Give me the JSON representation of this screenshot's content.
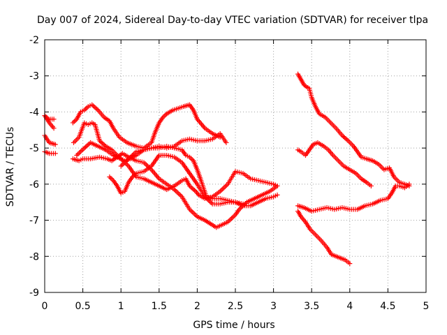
{
  "chart_data": {
    "type": "scatter",
    "title": "Day 007 of 2024, Sidereal Day-to-day VTEC variation (SDTVAR) for receiver tlpa",
    "xlabel": "GPS time / hours",
    "ylabel": "SDTVAR / TECUs",
    "xlim": [
      0,
      5
    ],
    "ylim": [
      -9,
      -2
    ],
    "xticks": [
      0,
      0.5,
      1,
      1.5,
      2,
      2.5,
      3,
      3.5,
      4,
      4.5,
      5
    ],
    "xtick_labels": [
      "0",
      "0.5",
      "1",
      "1.5",
      "2",
      "2.5",
      "3",
      "3.5",
      "4",
      "4.5",
      "5"
    ],
    "yticks": [
      -9,
      -8,
      -7,
      -6,
      -5,
      -4,
      -3,
      -2
    ],
    "ytick_labels": [
      "-9",
      "-8",
      "-7",
      "-6",
      "-5",
      "-4",
      "-3",
      "-2"
    ],
    "grid": true,
    "marker": "+",
    "color": "#ff0000",
    "series": [
      {
        "name": "s1",
        "x": [
          0.0,
          0.05,
          0.12
        ],
        "y": [
          -4.1,
          -4.2,
          -4.2
        ]
      },
      {
        "name": "s2",
        "x": [
          0.0,
          0.06,
          0.12
        ],
        "y": [
          -4.1,
          -4.3,
          -4.45
        ]
      },
      {
        "name": "s3",
        "x": [
          0.0,
          0.06,
          0.14
        ],
        "y": [
          -4.65,
          -4.85,
          -4.9
        ]
      },
      {
        "name": "s4",
        "x": [
          0.0,
          0.06,
          0.14
        ],
        "y": [
          -5.1,
          -5.15,
          -5.15
        ]
      },
      {
        "name": "s5",
        "x": [
          0.38,
          0.45,
          0.52,
          0.57,
          0.62,
          0.66,
          0.72,
          0.8,
          0.88,
          0.95,
          1.0,
          1.05,
          1.12,
          1.2,
          1.3,
          1.4,
          1.5,
          1.6,
          1.7,
          1.8,
          1.9,
          2.0,
          2.1,
          2.2,
          2.3,
          2.38
        ],
        "y": [
          -4.85,
          -4.7,
          -4.3,
          -4.35,
          -4.3,
          -4.35,
          -4.8,
          -4.95,
          -5.05,
          -5.2,
          -5.3,
          -5.35,
          -5.3,
          -5.2,
          -5.05,
          -5.0,
          -4.95,
          -5.0,
          -4.95,
          -4.8,
          -4.75,
          -4.8,
          -4.8,
          -4.75,
          -4.6,
          -4.85
        ]
      },
      {
        "name": "s6",
        "x": [
          0.37,
          0.42,
          0.47,
          0.52,
          0.57,
          0.62,
          0.7,
          0.78,
          0.85,
          0.9,
          0.98,
          1.08,
          1.2,
          1.3,
          1.4,
          1.45,
          1.5,
          1.55,
          1.6,
          1.68,
          1.75,
          1.82,
          1.9,
          1.95,
          2.0,
          2.1,
          2.2,
          2.3
        ],
        "y": [
          -4.3,
          -4.2,
          -4.0,
          -3.95,
          -3.85,
          -3.8,
          -3.95,
          -4.15,
          -4.25,
          -4.45,
          -4.7,
          -4.85,
          -4.95,
          -5.0,
          -4.85,
          -4.55,
          -4.3,
          -4.15,
          -4.05,
          -3.95,
          -3.9,
          -3.85,
          -3.8,
          -3.95,
          -4.2,
          -4.45,
          -4.6,
          -4.7
        ]
      },
      {
        "name": "s7",
        "x": [
          0.37,
          0.45,
          0.5,
          0.6,
          0.72,
          0.82,
          0.88,
          0.95,
          1.02,
          1.1,
          1.2,
          1.3,
          1.4,
          1.5,
          1.6,
          1.7,
          1.8,
          1.9,
          2.0,
          2.1,
          2.25,
          2.4,
          2.5,
          2.55,
          2.65,
          2.75,
          2.85,
          2.95,
          3.05
        ],
        "y": [
          -5.3,
          -5.35,
          -5.3,
          -5.3,
          -5.25,
          -5.3,
          -5.35,
          -5.25,
          -5.15,
          -5.25,
          -5.35,
          -5.4,
          -5.6,
          -5.85,
          -6.0,
          -6.15,
          -6.35,
          -6.7,
          -6.9,
          -7.0,
          -7.2,
          -7.05,
          -6.85,
          -6.7,
          -6.5,
          -6.4,
          -6.3,
          -6.2,
          -6.05
        ]
      },
      {
        "name": "s8",
        "x": [
          0.42,
          0.52,
          0.6,
          0.7,
          0.8,
          0.9,
          1.0,
          1.1,
          1.2,
          1.3,
          1.4,
          1.5,
          1.6,
          1.7,
          1.8,
          1.85,
          1.9,
          1.98,
          2.02,
          2.1,
          2.2,
          2.3,
          2.4,
          2.5,
          2.6,
          2.7,
          2.8,
          2.9,
          3.0,
          3.05
        ],
        "y": [
          -5.2,
          -5.0,
          -4.85,
          -4.95,
          -5.05,
          -5.2,
          -5.3,
          -5.5,
          -5.8,
          -5.85,
          -5.95,
          -6.05,
          -6.15,
          -6.05,
          -5.9,
          -5.85,
          -6.05,
          -6.2,
          -6.3,
          -6.4,
          -6.35,
          -6.2,
          -6.0,
          -5.65,
          -5.7,
          -5.85,
          -5.9,
          -5.95,
          -6.0,
          -6.05
        ]
      },
      {
        "name": "s9",
        "x": [
          0.85,
          0.9,
          0.95,
          1.0,
          1.05,
          1.1,
          1.15,
          1.2,
          1.3,
          1.4,
          1.5,
          1.6,
          1.7,
          1.8,
          1.9,
          2.0,
          2.1,
          2.2,
          2.3,
          2.4,
          2.5,
          2.6,
          2.7,
          2.8,
          2.9,
          3.0,
          3.05
        ],
        "y": [
          -5.8,
          -5.9,
          -6.05,
          -6.25,
          -6.2,
          -5.95,
          -5.8,
          -5.7,
          -5.65,
          -5.5,
          -5.2,
          -5.2,
          -5.25,
          -5.4,
          -5.7,
          -6.0,
          -6.35,
          -6.55,
          -6.55,
          -6.5,
          -6.5,
          -6.6,
          -6.6,
          -6.5,
          -6.4,
          -6.35,
          -6.3
        ]
      },
      {
        "name": "s10",
        "x": [
          1.0,
          1.1,
          1.2,
          1.3,
          1.4,
          1.5,
          1.6,
          1.7,
          1.8,
          1.85,
          1.9,
          1.95,
          2.0,
          2.05,
          2.12,
          2.2,
          2.3,
          2.4,
          2.5,
          2.6
        ],
        "y": [
          -5.5,
          -5.3,
          -5.1,
          -5.05,
          -5.0,
          -5.0,
          -4.95,
          -5.0,
          -5.05,
          -5.2,
          -5.25,
          -5.35,
          -5.6,
          -5.9,
          -6.35,
          -6.4,
          -6.4,
          -6.45,
          -6.5,
          -6.55
        ]
      },
      {
        "name": "s11",
        "x": [
          3.32,
          3.36,
          3.4,
          3.43,
          3.47,
          3.5,
          3.55,
          3.6,
          3.68,
          3.75,
          3.82,
          3.9,
          3.98,
          4.05,
          4.1,
          4.15,
          4.22,
          4.3,
          4.38,
          4.45,
          4.52,
          4.58,
          4.65,
          4.72,
          4.78
        ],
        "y": [
          -2.95,
          -3.1,
          -3.25,
          -3.3,
          -3.35,
          -3.6,
          -3.85,
          -4.05,
          -4.15,
          -4.3,
          -4.45,
          -4.65,
          -4.8,
          -4.95,
          -5.1,
          -5.25,
          -5.3,
          -5.35,
          -5.45,
          -5.6,
          -5.55,
          -5.8,
          -5.95,
          -6.0,
          -6.05
        ]
      },
      {
        "name": "s12",
        "x": [
          3.32,
          3.36,
          3.42,
          3.47,
          3.52,
          3.58,
          3.66,
          3.72,
          3.78,
          3.85,
          3.92,
          4.0,
          4.08,
          4.15,
          4.22,
          4.28
        ],
        "y": [
          -5.05,
          -5.1,
          -5.2,
          -5.05,
          -4.9,
          -4.85,
          -4.95,
          -5.05,
          -5.2,
          -5.35,
          -5.5,
          -5.6,
          -5.7,
          -5.85,
          -5.95,
          -6.05
        ]
      },
      {
        "name": "s13",
        "x": [
          3.32,
          3.4,
          3.5,
          3.6,
          3.7,
          3.8,
          3.9,
          4.0,
          4.1,
          4.2,
          4.3,
          4.4,
          4.5,
          4.55,
          4.6,
          4.65,
          4.72,
          4.78
        ],
        "y": [
          -6.6,
          -6.65,
          -6.75,
          -6.7,
          -6.65,
          -6.7,
          -6.65,
          -6.7,
          -6.7,
          -6.6,
          -6.55,
          -6.45,
          -6.4,
          -6.25,
          -6.05,
          -6.05,
          -6.1,
          -6.0
        ]
      },
      {
        "name": "s14",
        "x": [
          3.32,
          3.36,
          3.42,
          3.48,
          3.55,
          3.62,
          3.7,
          3.76,
          3.82,
          3.88,
          3.94,
          4.0
        ],
        "y": [
          -6.75,
          -6.9,
          -7.05,
          -7.25,
          -7.4,
          -7.55,
          -7.75,
          -7.95,
          -8.0,
          -8.05,
          -8.1,
          -8.2
        ]
      }
    ]
  }
}
